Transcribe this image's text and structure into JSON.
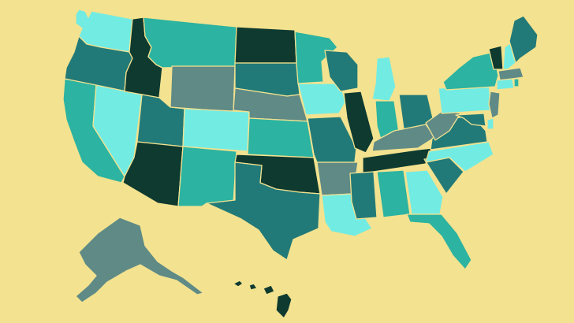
{
  "map": {
    "background": "#f3e28f",
    "border_color": "#f3e28f",
    "palette": {
      "darkest": "#0e3a30",
      "dark_teal": "#227a78",
      "slate": "#5f8a86",
      "teal": "#2cb3a1",
      "aqua": "#72ece3"
    },
    "states": [
      {
        "id": "WA",
        "shade": "aqua"
      },
      {
        "id": "OR",
        "shade": "dark_teal"
      },
      {
        "id": "CA",
        "shade": "teal"
      },
      {
        "id": "NV",
        "shade": "aqua"
      },
      {
        "id": "ID",
        "shade": "darkest"
      },
      {
        "id": "MT",
        "shade": "teal"
      },
      {
        "id": "WY",
        "shade": "slate"
      },
      {
        "id": "UT",
        "shade": "dark_teal"
      },
      {
        "id": "AZ",
        "shade": "darkest"
      },
      {
        "id": "CO",
        "shade": "aqua"
      },
      {
        "id": "NM",
        "shade": "teal"
      },
      {
        "id": "ND",
        "shade": "darkest"
      },
      {
        "id": "SD",
        "shade": "dark_teal"
      },
      {
        "id": "NE",
        "shade": "slate"
      },
      {
        "id": "KS",
        "shade": "teal"
      },
      {
        "id": "OK",
        "shade": "darkest"
      },
      {
        "id": "TX",
        "shade": "dark_teal"
      },
      {
        "id": "MN",
        "shade": "teal"
      },
      {
        "id": "IA",
        "shade": "aqua"
      },
      {
        "id": "MO",
        "shade": "dark_teal"
      },
      {
        "id": "AR",
        "shade": "slate"
      },
      {
        "id": "LA",
        "shade": "aqua"
      },
      {
        "id": "WI",
        "shade": "dark_teal"
      },
      {
        "id": "IL",
        "shade": "darkest"
      },
      {
        "id": "MI",
        "shade": "aqua"
      },
      {
        "id": "IN",
        "shade": "teal"
      },
      {
        "id": "OH",
        "shade": "dark_teal"
      },
      {
        "id": "KY",
        "shade": "slate"
      },
      {
        "id": "TN",
        "shade": "darkest"
      },
      {
        "id": "MS",
        "shade": "dark_teal"
      },
      {
        "id": "AL",
        "shade": "teal"
      },
      {
        "id": "GA",
        "shade": "aqua"
      },
      {
        "id": "FL",
        "shade": "teal"
      },
      {
        "id": "SC",
        "shade": "dark_teal"
      },
      {
        "id": "NC",
        "shade": "aqua"
      },
      {
        "id": "VA",
        "shade": "dark_teal"
      },
      {
        "id": "WV",
        "shade": "slate"
      },
      {
        "id": "PA",
        "shade": "aqua"
      },
      {
        "id": "NY",
        "shade": "teal"
      },
      {
        "id": "VT",
        "shade": "darkest"
      },
      {
        "id": "NH",
        "shade": "aqua"
      },
      {
        "id": "ME",
        "shade": "dark_teal"
      },
      {
        "id": "MA",
        "shade": "slate"
      },
      {
        "id": "CT",
        "shade": "aqua"
      },
      {
        "id": "RI",
        "shade": "teal"
      },
      {
        "id": "NJ",
        "shade": "slate"
      },
      {
        "id": "DE",
        "shade": "aqua"
      },
      {
        "id": "MD",
        "shade": "dark_teal"
      },
      {
        "id": "AK",
        "shade": "slate"
      },
      {
        "id": "HI",
        "shade": "darkest"
      }
    ]
  }
}
